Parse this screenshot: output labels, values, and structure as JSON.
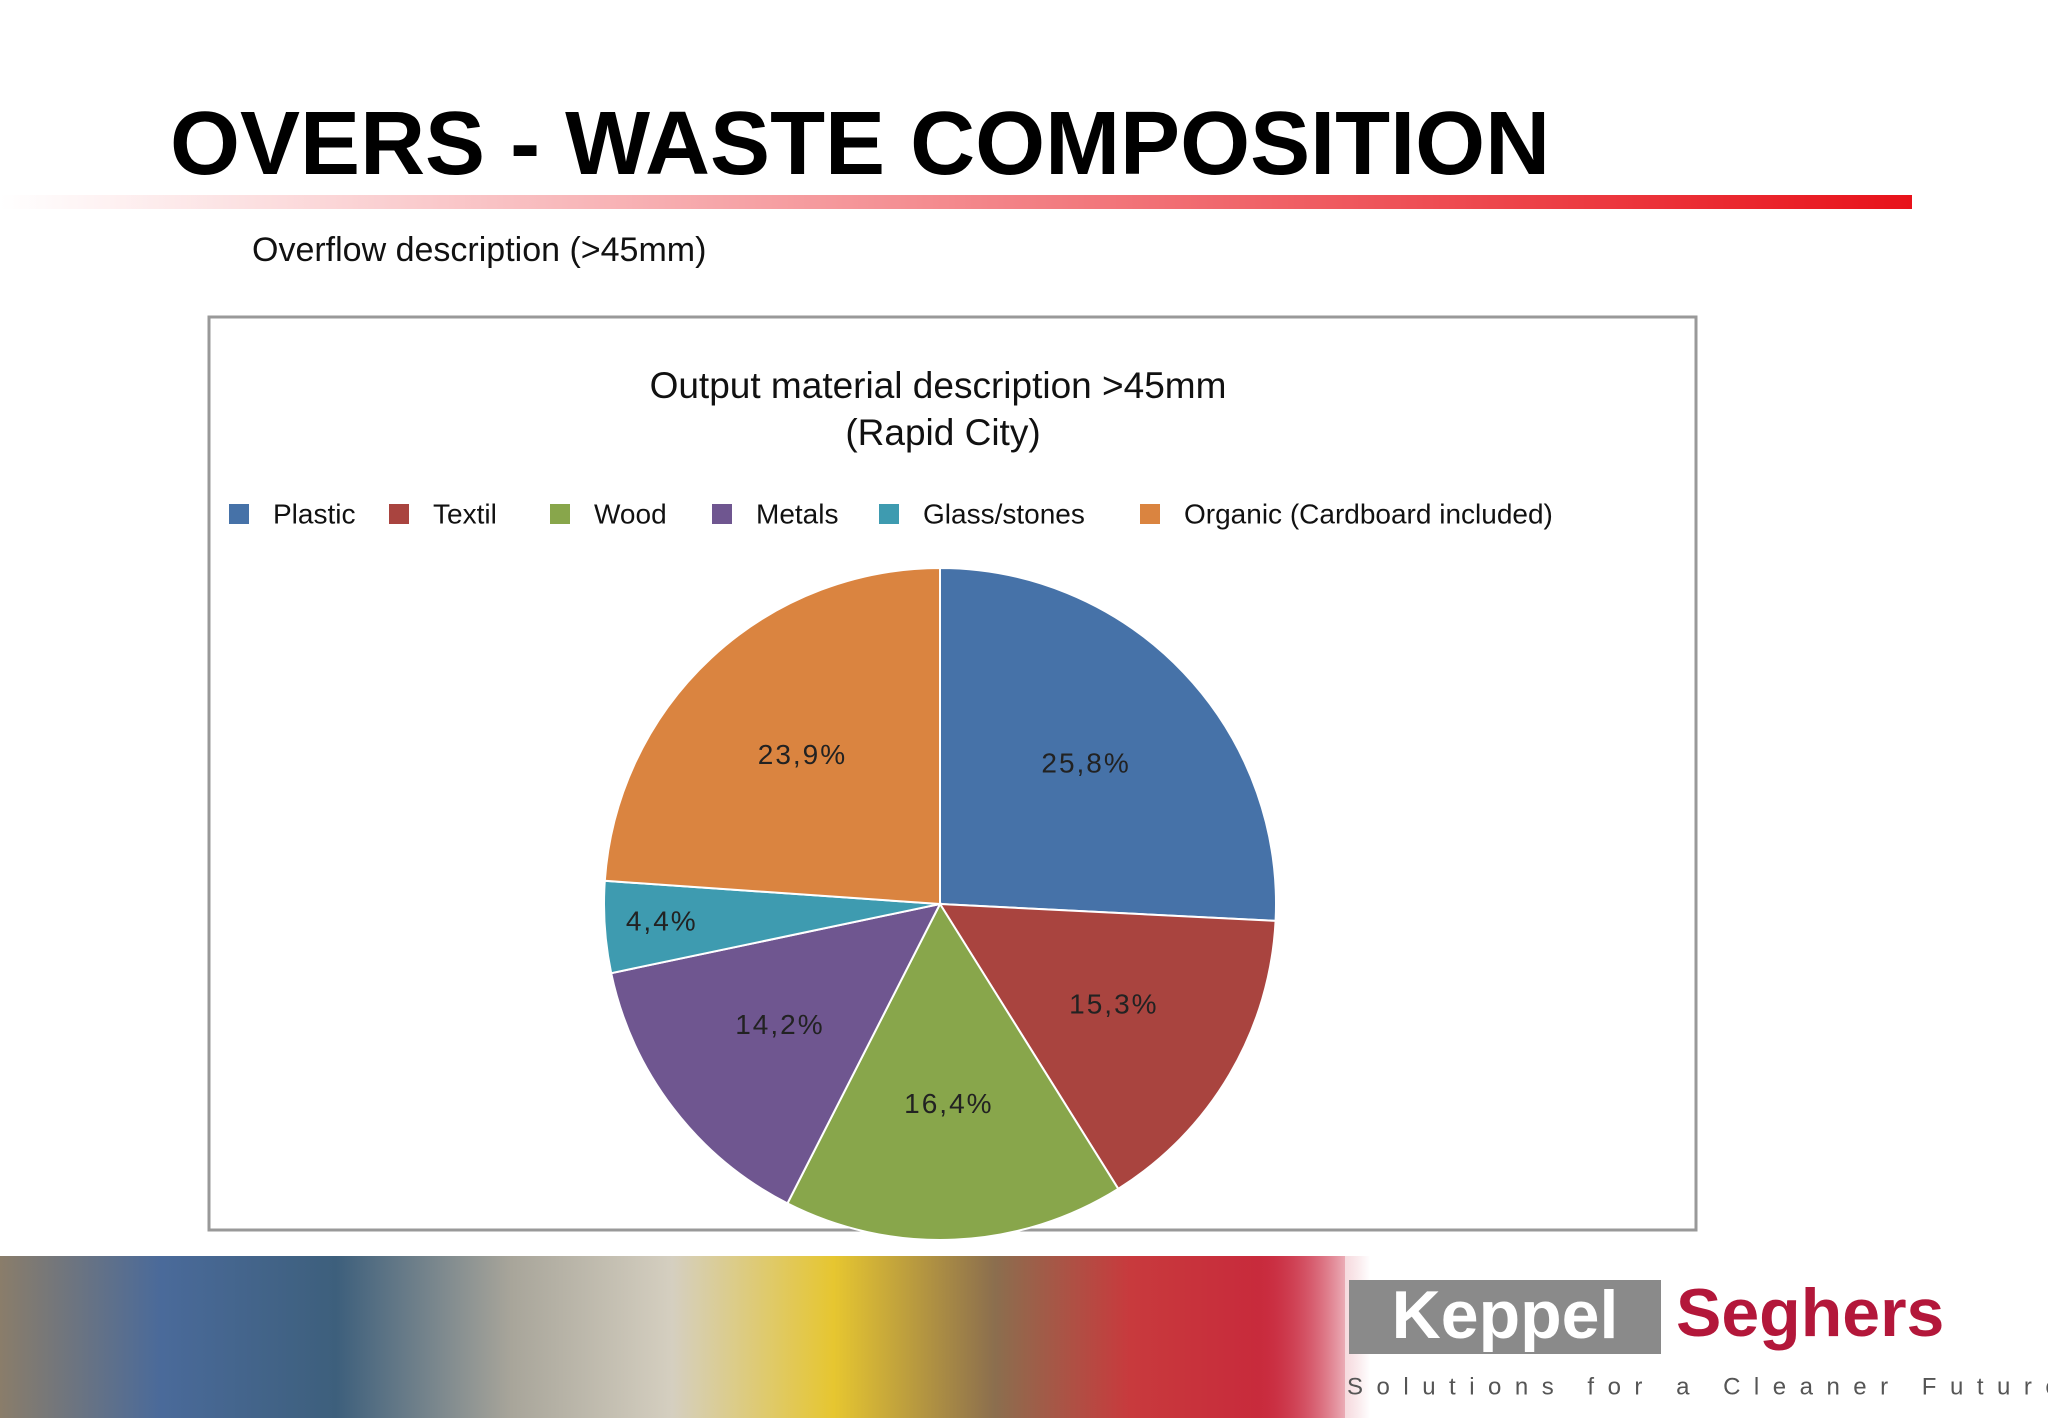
{
  "slide": {
    "title": "OVERS - WASTE COMPOSITION",
    "subtitle": "Overflow description (>45mm)",
    "logo_left": "Keppel",
    "logo_right": "Seghers",
    "tagline": "Solutions for a Cleaner Future"
  },
  "chart_data": {
    "type": "pie",
    "title": [
      "Output material description >45mm",
      "(Rapid City)"
    ],
    "categories": [
      "Plastic",
      "Textil",
      "Wood",
      "Metals",
      "Glass/stones",
      "Organic (Cardboard included)"
    ],
    "values": [
      25.8,
      15.3,
      16.4,
      14.2,
      4.4,
      23.9
    ],
    "value_labels": [
      "25,8%",
      "15,3%",
      "16,4%",
      "14,2%",
      "4,4%",
      "23,9%"
    ],
    "colors": [
      "#4672a8",
      "#a9443f",
      "#88a64b",
      "#6f5690",
      "#3e9bb0",
      "#da8440"
    ],
    "legend": "top"
  }
}
